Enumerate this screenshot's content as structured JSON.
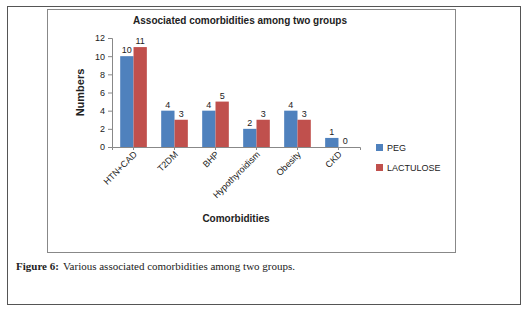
{
  "chart_data": {
    "type": "bar",
    "title": "Associated comorbidities among two groups",
    "x_label": "Comorbidities",
    "y_label": "Numbers",
    "categories": [
      "HTN+CAD",
      "T2DM",
      "BHP",
      "Hypothyroidism",
      "Obesity",
      "CKD"
    ],
    "series": [
      {
        "name": "PEG",
        "color": "#4f81bd",
        "values": [
          10,
          4,
          4,
          2,
          4,
          1
        ]
      },
      {
        "name": "LACTULOSE",
        "color": "#c0504d",
        "values": [
          11,
          3,
          5,
          3,
          3,
          0
        ]
      }
    ],
    "ylim": [
      0,
      12
    ],
    "yticks": [
      0,
      2,
      4,
      6,
      8,
      10,
      12
    ],
    "grid": false,
    "legend": "right",
    "data_labels": true
  },
  "caption": {
    "label": "Figure 6:",
    "text": "Various associated comorbidities among two groups."
  }
}
